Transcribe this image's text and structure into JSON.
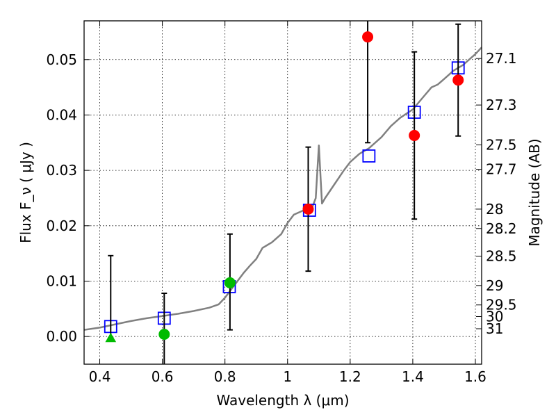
{
  "chart_data": {
    "type": "scatter",
    "xlabel": "Wavelength  λ (μm)",
    "ylabel": "Flux  F_ν  ( μJy )",
    "ylabel_right": "Magnitude (AB)",
    "xlim": [
      0.35,
      1.62
    ],
    "ylim": [
      -0.005,
      0.057
    ],
    "grid": true,
    "x_ticks": [
      0.4,
      0.6,
      0.8,
      1.0,
      1.2,
      1.4,
      1.6
    ],
    "x_tick_labels": [
      "0.4",
      "0.6",
      "0.8",
      "1",
      "1.2",
      "1.4",
      "1.6"
    ],
    "y_ticks": [
      0.0,
      0.01,
      0.02,
      0.03,
      0.04,
      0.05
    ],
    "y_tick_labels": [
      "0.00",
      "0.01",
      "0.02",
      "0.03",
      "0.04",
      "0.05"
    ],
    "right_ticks": [
      {
        "flux": 0.0502,
        "label": "27.1"
      },
      {
        "flux": 0.0418,
        "label": "27.3"
      },
      {
        "flux": 0.0346,
        "label": "27.5"
      },
      {
        "flux": 0.0302,
        "label": "27.7"
      },
      {
        "flux": 0.023,
        "label": "28"
      },
      {
        "flux": 0.0195,
        "label": "28.2"
      },
      {
        "flux": 0.0145,
        "label": "28.5"
      },
      {
        "flux": 0.0092,
        "label": "29"
      },
      {
        "flux": 0.0057,
        "label": "29.5"
      },
      {
        "flux": 0.0036,
        "label": "30"
      },
      {
        "flux": 0.0014,
        "label": "31"
      }
    ],
    "series": [
      {
        "color": "#808080",
        "type": "line",
        "x": [
          0.35,
          0.4,
          0.45,
          0.5,
          0.55,
          0.6,
          0.65,
          0.7,
          0.75,
          0.78,
          0.8,
          0.82,
          0.84,
          0.86,
          0.88,
          0.9,
          0.92,
          0.95,
          0.98,
          1.0,
          1.02,
          1.04,
          1.06,
          1.08,
          1.09,
          1.1,
          1.11,
          1.12,
          1.15,
          1.18,
          1.2,
          1.23,
          1.26,
          1.3,
          1.33,
          1.36,
          1.4,
          1.43,
          1.46,
          1.48,
          1.5,
          1.53,
          1.56,
          1.6,
          1.62
        ],
        "y": [
          0.0012,
          0.0016,
          0.0022,
          0.0028,
          0.0033,
          0.0037,
          0.0041,
          0.0046,
          0.0052,
          0.0058,
          0.007,
          0.0085,
          0.01,
          0.0115,
          0.0128,
          0.014,
          0.016,
          0.017,
          0.0185,
          0.0205,
          0.022,
          0.0225,
          0.023,
          0.0235,
          0.025,
          0.0345,
          0.024,
          0.025,
          0.0275,
          0.03,
          0.0315,
          0.033,
          0.034,
          0.036,
          0.038,
          0.0395,
          0.041,
          0.043,
          0.045,
          0.0455,
          0.0465,
          0.048,
          0.049,
          0.051,
          0.0522
        ]
      },
      {
        "color": "#0000ff",
        "marker": "open-square",
        "x": [
          0.435,
          0.606,
          0.814,
          1.07,
          1.26,
          1.405,
          1.545
        ],
        "y": [
          0.0018,
          0.0033,
          0.009,
          0.0228,
          0.0326,
          0.0405,
          0.0485
        ]
      },
      {
        "color": "#ff0000",
        "marker": "circle",
        "x": [
          1.066,
          1.256,
          1.405,
          1.545
        ],
        "y": [
          0.023,
          0.0541,
          0.0363,
          0.0463
        ],
        "err_low": [
          0.0112,
          0.0191,
          0.0151,
          0.0101
        ],
        "err_high": [
          0.0112,
          0.0191,
          0.0151,
          0.0101
        ]
      },
      {
        "color": "#00bb00",
        "marker": "circle",
        "x": [
          0.606,
          0.816
        ],
        "y": [
          0.0004,
          0.0097
        ],
        "err_low": [
          0.0076,
          0.0085
        ],
        "err_high": [
          0.0074,
          0.0088
        ]
      },
      {
        "color": "#00bb00",
        "marker": "triangle",
        "x": [
          0.435
        ],
        "y": [
          -0.0002
        ],
        "err_low": [
          0.0
        ],
        "err_high": [
          0.0148
        ]
      }
    ]
  }
}
